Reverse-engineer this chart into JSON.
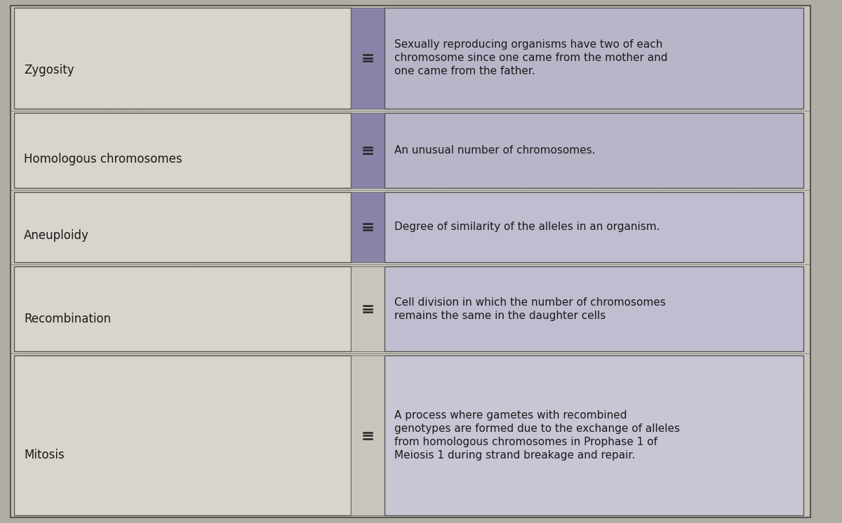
{
  "terms": [
    "Zygosity",
    "Homologous chromosomes",
    "Aneuploidy",
    "Recombination",
    "Mitosis"
  ],
  "definitions": [
    "Sexually reproducing organisms have two of each\nchromosome since one came from the mother and\none came from the father.",
    "An unusual number of chromosomes.",
    "Degree of similarity of the alleles in an organism.",
    "Cell division in which the number of chromosomes\nremains the same in the daughter cells",
    "A process where gametes with recombined\ngenotypes are formed due to the exchange of alleles\nfrom homologous chromosomes in Prophase 1 of\nMeiosis 1 during strand breakage and repair."
  ],
  "bg_color": "#c8c5bc",
  "left_box_color": "#d8d5cc",
  "right_box_color_0": "#b8b5c8",
  "right_box_color_1": "#b8b5c8",
  "right_box_color_2": "#c0bdd0",
  "right_box_color_3": "#c0bdd0",
  "right_box_color_4": "#c8c5d5",
  "center_col_color_0": "#8884a8",
  "center_col_color_1": "#8884a8",
  "center_col_color_2": "#8884a8",
  "center_col_color_3": "#c8c5bc",
  "center_col_color_4": "#c8c5bc",
  "border_color": "#555555",
  "text_color": "#1a1a1a",
  "connector_color": "#222222",
  "term_fontsize": 12,
  "def_fontsize": 11,
  "fig_bg": "#b0ada4"
}
